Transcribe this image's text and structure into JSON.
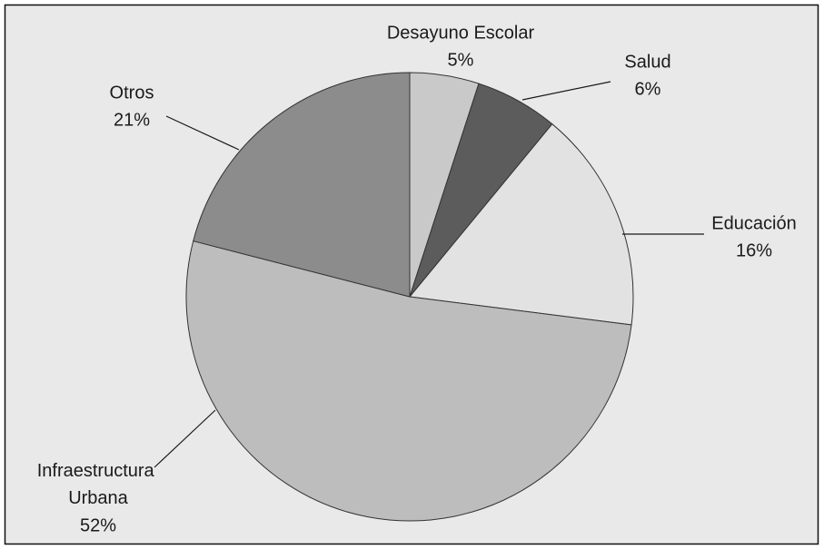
{
  "chart_data": {
    "type": "pie",
    "categories": [
      "Desayuno Escolar",
      "Salud",
      "Educación",
      "Infraestructura Urbana",
      "Otros"
    ],
    "values": [
      5,
      6,
      16,
      52,
      21
    ],
    "value_labels": [
      "5%",
      "6%",
      "16%",
      "52%",
      "21%"
    ],
    "colors": [
      "#c9c9c9",
      "#5c5c5c",
      "#e2e2e2",
      "#bdbdbd",
      "#8c8c8c"
    ]
  }
}
